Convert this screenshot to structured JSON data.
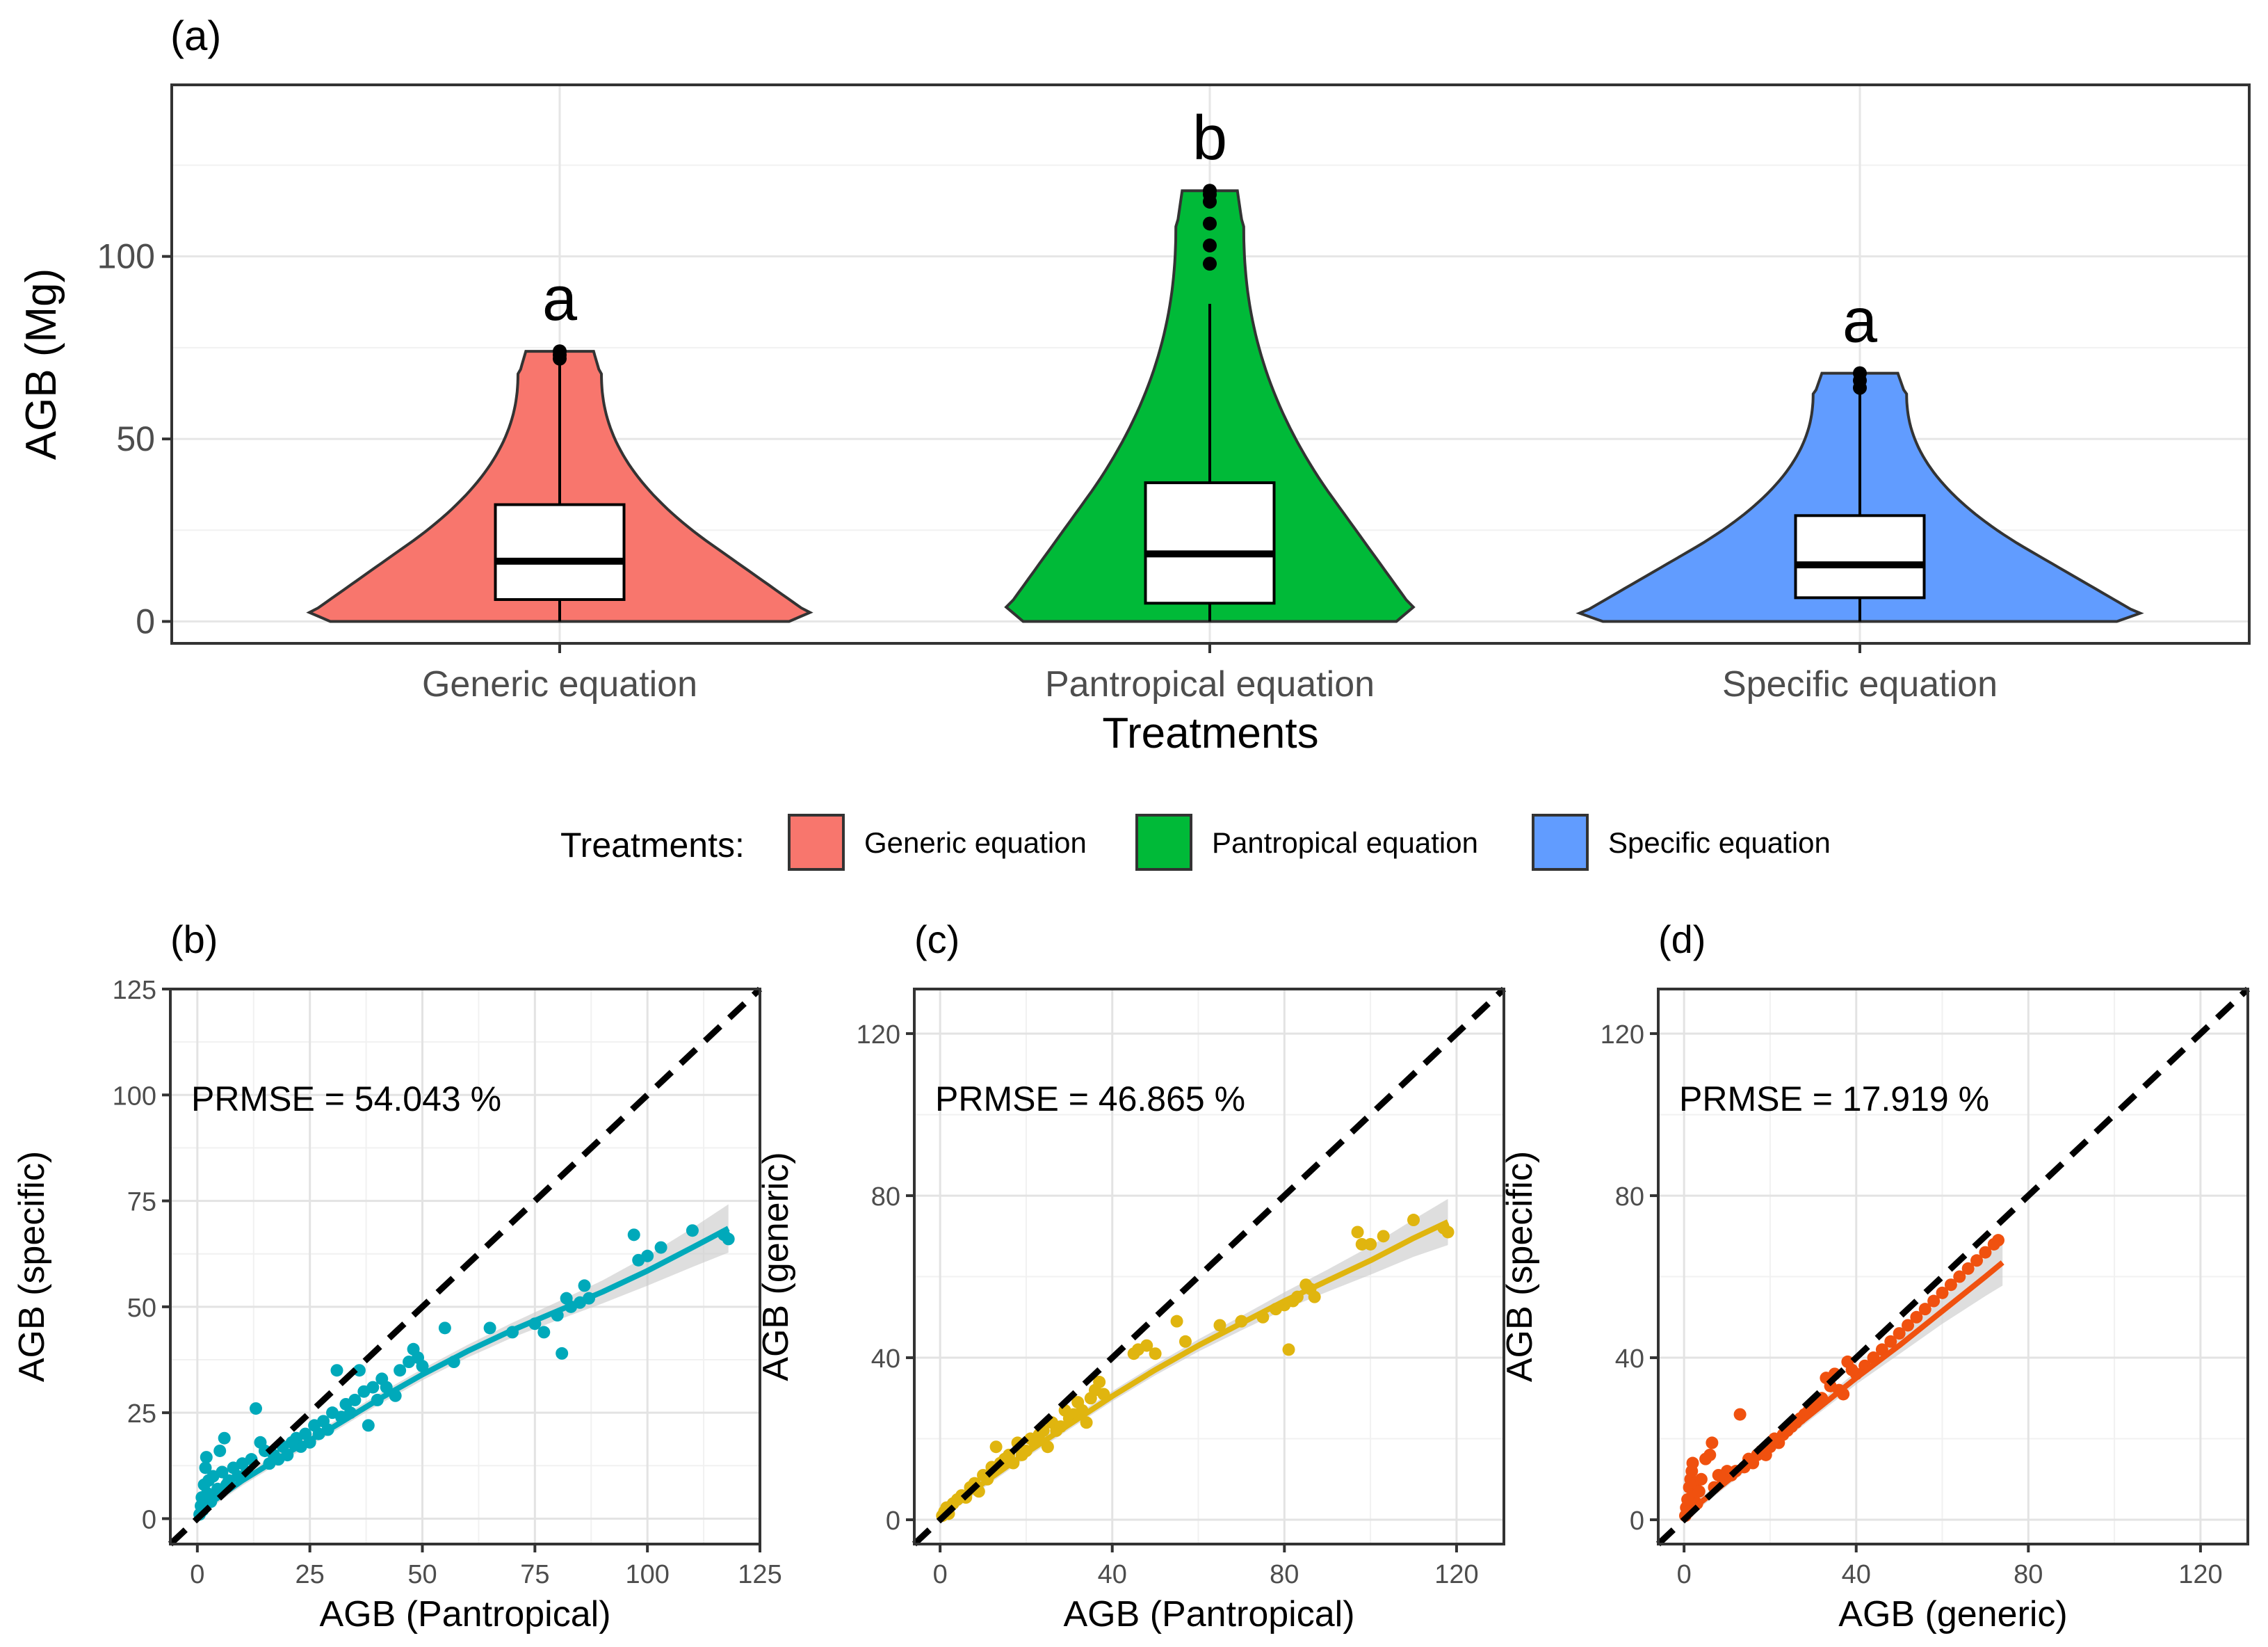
{
  "panel_labels": [
    "(a)",
    "(b)",
    "(c)",
    "(d)"
  ],
  "legend": {
    "title": "Treatments:",
    "items": [
      {
        "label": "Generic equation",
        "color": "#F8766D"
      },
      {
        "label": "Pantropical equation",
        "color": "#00BA38"
      },
      {
        "label": "Specific equation",
        "color": "#619CFF"
      }
    ]
  },
  "chart_data": [
    {
      "type": "violin",
      "panel": "(a)",
      "xlabel": "Treatments",
      "ylabel": "AGB (Mg)",
      "ylim": [
        -6,
        147
      ],
      "yticks": [
        0,
        50,
        100
      ],
      "categories": [
        "Generic equation",
        "Pantropical equation",
        "Specific equation"
      ],
      "colors": [
        "#F8766D",
        "#00BA38",
        "#619CFF"
      ],
      "significance_letters": [
        "a",
        "b",
        "a"
      ],
      "boxes": [
        {
          "q1": 6,
          "median": 16.5,
          "q3": 32,
          "whisker_low": 0,
          "whisker_high": 71,
          "outliers": [
            72,
            73,
            74
          ]
        },
        {
          "q1": 5,
          "median": 18.5,
          "q3": 38,
          "whisker_low": 0,
          "whisker_high": 87,
          "outliers": [
            98,
            103,
            109,
            115,
            117,
            118
          ]
        },
        {
          "q1": 6.5,
          "median": 15.5,
          "q3": 29,
          "whisker_low": 0,
          "whisker_high": 63,
          "outliers": [
            64,
            66,
            68
          ]
        }
      ],
      "grid": true,
      "legend_position": "bottom"
    },
    {
      "type": "scatter",
      "panel": "(b)",
      "xlabel": "AGB (Pantropical)",
      "ylabel": "AGB (specific)",
      "xlim": [
        -6,
        125
      ],
      "ylim": [
        -6,
        125
      ],
      "xticks": [
        0,
        25,
        50,
        75,
        100,
        125
      ],
      "yticks": [
        0,
        25,
        50,
        75,
        100,
        125
      ],
      "annotation": "PRMSE = 54.043 %",
      "color": "#00A9BA",
      "identity_line": true,
      "fit_line": {
        "x": [
          0,
          10,
          20,
          30,
          40,
          50,
          60,
          70,
          80,
          90,
          100,
          110,
          118
        ],
        "y": [
          1.5,
          9,
          15.5,
          21.5,
          28,
          34,
          39.5,
          44.5,
          49,
          53.5,
          58.5,
          64,
          68.5
        ]
      },
      "points": [
        [
          0.5,
          1
        ],
        [
          0.8,
          3
        ],
        [
          1,
          5
        ],
        [
          1.2,
          2
        ],
        [
          1.5,
          8
        ],
        [
          1.8,
          12
        ],
        [
          2,
          14.5
        ],
        [
          2.2,
          6
        ],
        [
          2.5,
          9
        ],
        [
          3,
          4
        ],
        [
          3.5,
          10
        ],
        [
          4,
          6
        ],
        [
          4.5,
          7
        ],
        [
          5,
          16
        ],
        [
          5.5,
          11
        ],
        [
          6,
          19
        ],
        [
          6.5,
          8
        ],
        [
          7,
          9
        ],
        [
          8,
          12
        ],
        [
          9,
          10
        ],
        [
          10,
          13
        ],
        [
          11,
          11
        ],
        [
          12,
          14
        ],
        [
          13,
          26
        ],
        [
          14,
          18
        ],
        [
          15,
          16
        ],
        [
          16,
          13
        ],
        [
          17,
          15
        ],
        [
          18,
          14
        ],
        [
          19,
          17
        ],
        [
          20,
          15
        ],
        [
          21,
          18
        ],
        [
          22,
          19
        ],
        [
          23,
          17
        ],
        [
          24,
          20
        ],
        [
          25,
          18
        ],
        [
          26,
          22
        ],
        [
          27,
          20
        ],
        [
          28,
          23
        ],
        [
          29,
          21
        ],
        [
          30,
          25
        ],
        [
          31,
          35
        ],
        [
          32,
          24
        ],
        [
          33,
          27
        ],
        [
          34,
          25
        ],
        [
          35,
          28
        ],
        [
          36,
          35
        ],
        [
          37,
          30
        ],
        [
          38,
          22
        ],
        [
          39,
          31
        ],
        [
          40,
          28
        ],
        [
          41,
          33
        ],
        [
          42,
          31
        ],
        [
          44,
          29
        ],
        [
          45,
          35
        ],
        [
          47,
          37
        ],
        [
          48,
          40
        ],
        [
          49,
          38
        ],
        [
          50,
          36
        ],
        [
          55,
          45
        ],
        [
          57,
          37
        ],
        [
          65,
          45
        ],
        [
          70,
          44
        ],
        [
          75,
          46
        ],
        [
          77,
          44
        ],
        [
          80,
          48
        ],
        [
          81,
          39
        ],
        [
          82,
          52
        ],
        [
          83,
          50
        ],
        [
          85,
          51
        ],
        [
          86,
          55
        ],
        [
          87,
          52
        ],
        [
          97,
          67
        ],
        [
          98,
          61
        ],
        [
          100,
          62
        ],
        [
          103,
          64
        ],
        [
          110,
          68
        ],
        [
          117,
          67
        ],
        [
          118,
          66
        ]
      ]
    },
    {
      "type": "scatter",
      "panel": "(c)",
      "xlabel": "AGB (Pantropical)",
      "ylabel": "AGB (generic)",
      "xlim": [
        -6,
        131
      ],
      "ylim": [
        -6,
        131
      ],
      "xticks": [
        0,
        40,
        80,
        120
      ],
      "yticks": [
        0,
        40,
        80,
        120
      ],
      "annotation": "PRMSE = 46.865 %",
      "color": "#E0B50F",
      "identity_line": true,
      "fit_line": {
        "x": [
          0,
          10,
          20,
          30,
          40,
          50,
          60,
          70,
          80,
          90,
          100,
          110,
          118
        ],
        "y": [
          1,
          9,
          16.5,
          23.5,
          30.5,
          37,
          43,
          48.5,
          54,
          59,
          64,
          69.5,
          73.5
        ]
      },
      "points": [
        [
          0.5,
          1
        ],
        [
          1,
          2
        ],
        [
          1.5,
          3
        ],
        [
          2,
          1.5
        ],
        [
          3,
          4
        ],
        [
          4,
          5
        ],
        [
          5,
          6
        ],
        [
          6,
          5.5
        ],
        [
          7,
          8
        ],
        [
          8,
          9
        ],
        [
          9,
          7
        ],
        [
          10,
          11
        ],
        [
          11,
          10
        ],
        [
          12,
          13
        ],
        [
          13,
          18
        ],
        [
          14,
          14
        ],
        [
          15,
          15
        ],
        [
          16,
          16
        ],
        [
          17,
          14
        ],
        [
          18,
          19
        ],
        [
          19,
          16
        ],
        [
          20,
          17
        ],
        [
          21,
          20
        ],
        [
          22,
          19
        ],
        [
          23,
          21
        ],
        [
          24,
          22
        ],
        [
          25,
          18
        ],
        [
          26,
          24
        ],
        [
          27,
          22
        ],
        [
          28,
          23
        ],
        [
          29,
          27
        ],
        [
          30,
          25
        ],
        [
          31,
          26
        ],
        [
          32,
          29
        ],
        [
          33,
          27
        ],
        [
          34,
          24
        ],
        [
          35,
          30
        ],
        [
          36,
          32
        ],
        [
          37,
          34
        ],
        [
          38,
          31
        ],
        [
          45,
          41
        ],
        [
          46,
          42
        ],
        [
          48,
          43
        ],
        [
          50,
          41
        ],
        [
          55,
          49
        ],
        [
          57,
          44
        ],
        [
          65,
          48
        ],
        [
          70,
          49
        ],
        [
          75,
          50
        ],
        [
          78,
          52
        ],
        [
          80,
          53
        ],
        [
          81,
          42
        ],
        [
          82,
          54
        ],
        [
          83,
          55
        ],
        [
          85,
          58
        ],
        [
          86,
          57
        ],
        [
          87,
          55
        ],
        [
          97,
          71
        ],
        [
          98,
          68
        ],
        [
          100,
          68
        ],
        [
          103,
          70
        ],
        [
          110,
          74
        ],
        [
          117,
          72
        ],
        [
          118,
          71
        ]
      ]
    },
    {
      "type": "scatter",
      "panel": "(d)",
      "xlabel": "AGB (generic)",
      "ylabel": "AGB (specific)",
      "xlim": [
        -6,
        131
      ],
      "ylim": [
        -6,
        131
      ],
      "xticks": [
        0,
        40,
        80,
        120
      ],
      "yticks": [
        0,
        40,
        80,
        120
      ],
      "annotation": "PRMSE = 17.919 %",
      "color": "#F0510F",
      "identity_line": true,
      "fit_line": {
        "x": [
          0,
          10,
          20,
          30,
          40,
          50,
          60,
          70,
          74
        ],
        "y": [
          1,
          9.5,
          18,
          26.5,
          35,
          43,
          51.5,
          60,
          63.5
        ]
      },
      "points": [
        [
          0.3,
          1
        ],
        [
          0.5,
          3
        ],
        [
          0.8,
          5
        ],
        [
          1,
          2
        ],
        [
          1.2,
          8
        ],
        [
          1.5,
          10
        ],
        [
          1.8,
          12
        ],
        [
          2,
          14
        ],
        [
          2.3,
          6
        ],
        [
          2.6,
          9
        ],
        [
          3,
          4
        ],
        [
          3.5,
          7
        ],
        [
          4,
          10
        ],
        [
          5,
          15
        ],
        [
          6,
          16
        ],
        [
          6.5,
          19
        ],
        [
          7,
          8
        ],
        [
          8,
          11
        ],
        [
          9,
          10
        ],
        [
          10,
          12
        ],
        [
          11,
          11
        ],
        [
          12,
          12
        ],
        [
          13,
          26
        ],
        [
          14,
          13
        ],
        [
          15,
          15
        ],
        [
          16,
          14
        ],
        [
          17,
          16
        ],
        [
          18,
          17
        ],
        [
          19,
          16
        ],
        [
          20,
          18
        ],
        [
          21,
          20
        ],
        [
          22,
          19
        ],
        [
          23,
          21
        ],
        [
          24,
          22
        ],
        [
          25,
          23
        ],
        [
          26,
          24
        ],
        [
          27,
          25
        ],
        [
          28,
          26
        ],
        [
          29,
          27
        ],
        [
          30,
          28
        ],
        [
          31,
          29
        ],
        [
          32,
          30
        ],
        [
          33,
          35
        ],
        [
          34,
          33
        ],
        [
          35,
          36
        ],
        [
          36,
          32
        ],
        [
          37,
          31
        ],
        [
          38,
          39
        ],
        [
          39,
          37
        ],
        [
          40,
          36
        ],
        [
          42,
          38
        ],
        [
          44,
          40
        ],
        [
          46,
          42
        ],
        [
          48,
          44
        ],
        [
          50,
          46
        ],
        [
          52,
          48
        ],
        [
          54,
          50
        ],
        [
          56,
          52
        ],
        [
          58,
          54
        ],
        [
          60,
          56
        ],
        [
          62,
          58
        ],
        [
          64,
          60
        ],
        [
          66,
          62
        ],
        [
          68,
          64
        ],
        [
          70,
          66
        ],
        [
          72,
          68
        ],
        [
          73,
          69
        ]
      ]
    }
  ]
}
